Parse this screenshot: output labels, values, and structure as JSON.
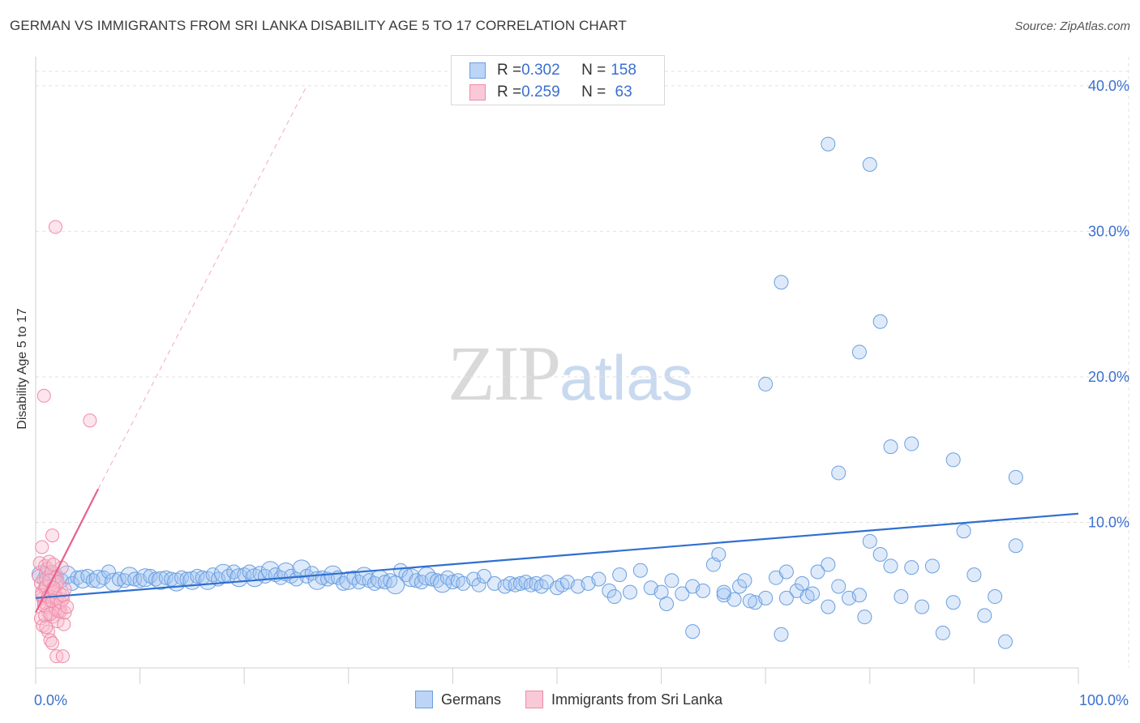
{
  "title": "GERMAN VS IMMIGRANTS FROM SRI LANKA DISABILITY AGE 5 TO 17 CORRELATION CHART",
  "source": "Source: ZipAtlas.com",
  "watermark": {
    "zip": "ZIP",
    "atlas": "atlas"
  },
  "legend_top": {
    "rows": [
      {
        "r_label": "R = ",
        "r_value": "0.302",
        "n_label": "N = ",
        "n_value": "158"
      },
      {
        "r_label": "R = ",
        "r_value": "0.259",
        "n_label": "N = ",
        "n_value": " 63"
      }
    ]
  },
  "chart_data": {
    "type": "scatter",
    "xlabel": "",
    "ylabel": "Disability Age 5 to 17",
    "xlim": [
      0,
      100
    ],
    "ylim": [
      0,
      42
    ],
    "x_tick_labels": [
      "0.0%",
      "100.0%"
    ],
    "y_ticks": [
      10,
      20,
      30,
      40
    ],
    "y_tick_labels": [
      "10.0%",
      "20.0%",
      "30.0%",
      "40.0%"
    ],
    "grid": true,
    "legend_placement": "bottom",
    "colors": {
      "germans": "#6a9fe0",
      "germans_line": "#2f6fd0",
      "srilanka": "#f08aa8",
      "srilanka_line": "#e8608a"
    },
    "series": [
      {
        "name": "Germans",
        "trend": {
          "x": [
            0,
            100
          ],
          "y": [
            4.8,
            10.6
          ]
        },
        "points": [
          [
            0.5,
            6.4
          ],
          [
            0.8,
            6.1
          ],
          [
            1,
            6.5
          ],
          [
            1.5,
            6.2
          ],
          [
            2,
            6.3
          ],
          [
            2.5,
            6.0
          ],
          [
            3,
            6.4
          ],
          [
            3.5,
            5.8
          ],
          [
            4,
            6.2
          ],
          [
            4.5,
            6.1
          ],
          [
            5,
            6.3
          ],
          [
            5.5,
            6.0
          ],
          [
            6,
            6.1
          ],
          [
            6.5,
            6.2
          ],
          [
            7,
            6.6
          ],
          [
            7.5,
            5.9
          ],
          [
            8,
            6.1
          ],
          [
            8.5,
            6.0
          ],
          [
            9,
            6.3
          ],
          [
            9.5,
            6.1
          ],
          [
            10,
            6.0
          ],
          [
            10.5,
            6.2
          ],
          [
            11,
            6.3
          ],
          [
            11.5,
            6.1
          ],
          [
            12,
            6.0
          ],
          [
            12.5,
            6.2
          ],
          [
            13,
            6.1
          ],
          [
            13.5,
            5.9
          ],
          [
            14,
            6.2
          ],
          [
            14.5,
            6.1
          ],
          [
            15,
            6.0
          ],
          [
            15.5,
            6.3
          ],
          [
            16,
            6.2
          ],
          [
            16.5,
            6.0
          ],
          [
            17,
            6.4
          ],
          [
            17.5,
            6.1
          ],
          [
            18,
            6.5
          ],
          [
            18.5,
            6.3
          ],
          [
            19,
            6.6
          ],
          [
            19.5,
            6.2
          ],
          [
            20,
            6.4
          ],
          [
            20.5,
            6.6
          ],
          [
            21,
            6.2
          ],
          [
            21.5,
            6.5
          ],
          [
            22,
            6.3
          ],
          [
            22.5,
            6.7
          ],
          [
            23,
            6.4
          ],
          [
            23.5,
            6.2
          ],
          [
            24,
            6.6
          ],
          [
            24.5,
            6.3
          ],
          [
            25,
            6.1
          ],
          [
            25.5,
            6.8
          ],
          [
            26,
            6.3
          ],
          [
            26.5,
            6.5
          ],
          [
            27,
            6.0
          ],
          [
            27.5,
            6.2
          ],
          [
            28,
            6.1
          ],
          [
            28.5,
            6.4
          ],
          [
            29,
            6.2
          ],
          [
            29.5,
            5.8
          ],
          [
            30,
            6.0
          ],
          [
            30.5,
            6.2
          ],
          [
            31,
            5.9
          ],
          [
            31.5,
            6.3
          ],
          [
            32,
            6.0
          ],
          [
            32.5,
            5.8
          ],
          [
            33,
            6.1
          ],
          [
            33.5,
            5.9
          ],
          [
            34,
            6.0
          ],
          [
            34.5,
            5.7
          ],
          [
            35,
            6.7
          ],
          [
            35.5,
            6.4
          ],
          [
            36,
            6.2
          ],
          [
            36.5,
            6.0
          ],
          [
            37,
            5.9
          ],
          [
            37.5,
            6.3
          ],
          [
            38,
            6.1
          ],
          [
            38.5,
            6.0
          ],
          [
            39,
            5.8
          ],
          [
            39.5,
            6.2
          ],
          [
            40,
            5.9
          ],
          [
            40.5,
            6.0
          ],
          [
            41,
            5.8
          ],
          [
            42,
            6.1
          ],
          [
            42.5,
            5.7
          ],
          [
            43,
            6.3
          ],
          [
            44,
            5.8
          ],
          [
            45,
            5.6
          ],
          [
            45.5,
            5.8
          ],
          [
            46,
            5.7
          ],
          [
            46.5,
            5.8
          ],
          [
            47,
            5.9
          ],
          [
            47.5,
            5.7
          ],
          [
            48,
            5.8
          ],
          [
            48.5,
            5.6
          ],
          [
            49,
            5.9
          ],
          [
            50,
            5.5
          ],
          [
            50.5,
            5.7
          ],
          [
            51,
            5.9
          ],
          [
            52,
            5.6
          ],
          [
            53,
            5.8
          ],
          [
            54,
            6.1
          ],
          [
            55,
            5.3
          ],
          [
            55.5,
            4.9
          ],
          [
            56,
            6.4
          ],
          [
            57,
            5.2
          ],
          [
            58,
            6.7
          ],
          [
            59,
            5.5
          ],
          [
            60,
            5.2
          ],
          [
            60.5,
            4.4
          ],
          [
            61,
            6.0
          ],
          [
            62,
            5.1
          ],
          [
            63,
            5.6
          ],
          [
            64,
            5.3
          ],
          [
            65,
            7.1
          ],
          [
            66,
            5.0
          ],
          [
            67,
            4.7
          ],
          [
            67.5,
            5.6
          ],
          [
            68,
            6.0
          ],
          [
            69,
            4.5
          ],
          [
            70,
            4.8
          ],
          [
            71,
            6.2
          ],
          [
            72,
            6.6
          ],
          [
            73,
            5.3
          ],
          [
            74,
            4.9
          ],
          [
            75,
            6.6
          ],
          [
            76,
            7.1
          ],
          [
            77,
            5.6
          ],
          [
            78,
            4.8
          ],
          [
            79,
            5.0
          ],
          [
            80,
            8.7
          ],
          [
            81,
            7.8
          ],
          [
            82,
            7.0
          ],
          [
            83,
            4.9
          ],
          [
            84,
            6.9
          ],
          [
            85,
            4.2
          ],
          [
            86,
            7.0
          ],
          [
            87,
            2.4
          ],
          [
            88,
            4.5
          ],
          [
            89,
            9.4
          ],
          [
            90,
            6.4
          ],
          [
            91,
            3.6
          ],
          [
            92,
            4.9
          ],
          [
            93,
            1.8
          ],
          [
            94,
            8.4
          ],
          [
            63,
            2.5
          ],
          [
            76,
            4.2
          ],
          [
            71.5,
            2.3
          ],
          [
            72,
            4.8
          ],
          [
            79.5,
            3.5
          ],
          [
            77,
            13.4
          ],
          [
            82,
            15.2
          ],
          [
            84,
            15.4
          ],
          [
            88,
            14.3
          ],
          [
            94,
            13.1
          ],
          [
            70,
            19.5
          ],
          [
            79,
            21.7
          ],
          [
            81,
            23.8
          ],
          [
            71.5,
            26.5
          ],
          [
            76,
            36.0
          ],
          [
            80,
            34.6
          ],
          [
            65.5,
            7.8
          ],
          [
            66,
            5.2
          ],
          [
            68.5,
            4.6
          ],
          [
            73.5,
            5.8
          ],
          [
            74.5,
            5.1
          ]
        ]
      },
      {
        "name": "Immigrants from Sri Lanka",
        "trend": {
          "x": [
            0,
            6.0
          ],
          "y": [
            3.8,
            12.3
          ]
        },
        "trend_extension": {
          "x": [
            6.0,
            26.0
          ],
          "y": [
            12.3,
            40.0
          ]
        },
        "points": [
          [
            0.3,
            6.3
          ],
          [
            0.5,
            5.8
          ],
          [
            0.6,
            5.2
          ],
          [
            0.7,
            4.8
          ],
          [
            0.8,
            4.5
          ],
          [
            0.9,
            5.5
          ],
          [
            1.0,
            6.1
          ],
          [
            1.1,
            4.2
          ],
          [
            1.2,
            3.8
          ],
          [
            1.3,
            5.0
          ],
          [
            1.4,
            4.6
          ],
          [
            1.5,
            5.3
          ],
          [
            1.6,
            3.5
          ],
          [
            1.7,
            4.9
          ],
          [
            1.8,
            6.5
          ],
          [
            1.9,
            4.0
          ],
          [
            2.0,
            5.7
          ],
          [
            2.1,
            3.2
          ],
          [
            2.2,
            4.4
          ],
          [
            2.3,
            5.1
          ],
          [
            2.4,
            3.9
          ],
          [
            2.5,
            6.9
          ],
          [
            2.6,
            4.7
          ],
          [
            2.7,
            3.0
          ],
          [
            2.8,
            5.4
          ],
          [
            0.4,
            7.2
          ],
          [
            0.6,
            8.3
          ],
          [
            0.9,
            7.0
          ],
          [
            1.1,
            6.8
          ],
          [
            1.3,
            7.3
          ],
          [
            1.5,
            6.6
          ],
          [
            1.7,
            7.1
          ],
          [
            1.9,
            6.2
          ],
          [
            2.1,
            5.9
          ],
          [
            2.3,
            4.1
          ],
          [
            0.5,
            3.4
          ],
          [
            0.7,
            2.9
          ],
          [
            0.9,
            3.6
          ],
          [
            1.2,
            2.5
          ],
          [
            1.4,
            1.9
          ],
          [
            1.6,
            1.7
          ],
          [
            2.0,
            0.8
          ],
          [
            2.6,
            0.8
          ],
          [
            1.6,
            9.1
          ],
          [
            0.8,
            18.7
          ],
          [
            1.9,
            30.3
          ],
          [
            5.2,
            17.0
          ],
          [
            0.6,
            5.0
          ],
          [
            0.8,
            4.3
          ],
          [
            1.0,
            5.6
          ],
          [
            1.2,
            4.9
          ],
          [
            1.4,
            3.7
          ],
          [
            1.6,
            4.6
          ],
          [
            1.8,
            5.2
          ],
          [
            2.0,
            4.8
          ],
          [
            2.2,
            3.9
          ],
          [
            2.4,
            4.5
          ],
          [
            2.6,
            5.0
          ],
          [
            2.8,
            3.8
          ],
          [
            3.0,
            4.2
          ],
          [
            1.0,
            2.8
          ],
          [
            1.3,
            6.0
          ],
          [
            1.7,
            5.5
          ]
        ]
      }
    ]
  },
  "bottom_legend": [
    "Germans",
    "Immigrants from Sri Lanka"
  ]
}
